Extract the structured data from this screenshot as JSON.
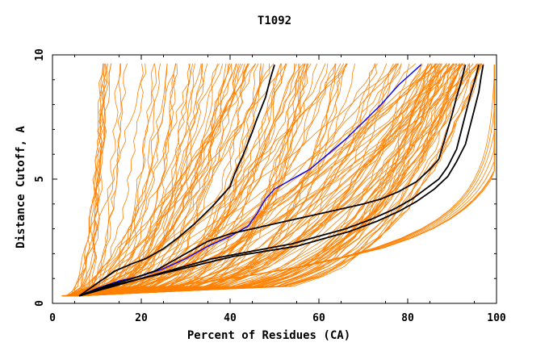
{
  "chart_data": {
    "type": "line",
    "title": "T1092",
    "xlabel": "Percent of Residues (CA)",
    "ylabel": "Distance Cutoff, A",
    "xlim": [
      0,
      100
    ],
    "ylim": [
      0,
      10
    ],
    "x_ticks": [
      0,
      20,
      40,
      60,
      80,
      100
    ],
    "y_ticks": [
      0,
      5,
      10
    ],
    "x_tick_labels": [
      "0",
      "20",
      "40",
      "60",
      "80",
      "100"
    ],
    "y_tick_labels": [
      "0",
      "5",
      "10"
    ],
    "grid": false,
    "colors": {
      "background_models": "#ff8000",
      "highlight_black": "#000000",
      "highlight_blue": "#0000ff"
    },
    "background_model_count": 160,
    "highlighted_series": [
      {
        "color": "#000000",
        "points": [
          [
            6,
            0.3
          ],
          [
            10,
            0.8
          ],
          [
            14,
            1.3
          ],
          [
            18,
            1.6
          ],
          [
            21,
            1.8
          ],
          [
            25,
            2.2
          ],
          [
            28,
            2.6
          ],
          [
            32,
            3.2
          ],
          [
            36,
            3.9
          ],
          [
            38,
            4.3
          ],
          [
            40,
            4.7
          ],
          [
            41,
            5.2
          ],
          [
            43,
            6.0
          ],
          [
            45,
            6.9
          ],
          [
            46,
            7.4
          ],
          [
            48,
            8.3
          ],
          [
            49,
            9.0
          ],
          [
            50,
            9.6
          ]
        ]
      },
      {
        "color": "#0000ff",
        "points": [
          [
            6,
            0.3
          ],
          [
            10,
            0.6
          ],
          [
            15,
            0.9
          ],
          [
            20,
            1.1
          ],
          [
            25,
            1.4
          ],
          [
            30,
            1.8
          ],
          [
            35,
            2.3
          ],
          [
            40,
            2.7
          ],
          [
            44,
            3.1
          ],
          [
            46,
            3.6
          ],
          [
            48,
            4.2
          ],
          [
            50,
            4.6
          ],
          [
            54,
            5.0
          ],
          [
            58,
            5.4
          ],
          [
            62,
            6.0
          ],
          [
            66,
            6.6
          ],
          [
            70,
            7.3
          ],
          [
            74,
            8.0
          ],
          [
            78,
            8.8
          ],
          [
            83,
            9.6
          ]
        ]
      },
      {
        "color": "#000000",
        "points": [
          [
            6,
            0.3
          ],
          [
            12,
            0.7
          ],
          [
            18,
            1.0
          ],
          [
            23,
            1.3
          ],
          [
            28,
            1.8
          ],
          [
            31,
            2.1
          ],
          [
            35,
            2.5
          ],
          [
            40,
            2.8
          ],
          [
            45,
            3.0
          ],
          [
            50,
            3.2
          ],
          [
            55,
            3.4
          ],
          [
            60,
            3.6
          ],
          [
            65,
            3.8
          ],
          [
            70,
            4.0
          ],
          [
            74,
            4.2
          ],
          [
            78,
            4.5
          ],
          [
            82,
            4.9
          ],
          [
            85,
            5.4
          ],
          [
            87,
            5.8
          ],
          [
            88,
            6.4
          ],
          [
            89,
            7.0
          ],
          [
            90,
            7.6
          ],
          [
            91,
            8.3
          ],
          [
            92,
            8.9
          ],
          [
            93,
            9.6
          ]
        ]
      },
      {
        "color": "#000000",
        "points": [
          [
            6,
            0.3
          ],
          [
            12,
            0.6
          ],
          [
            18,
            0.9
          ],
          [
            24,
            1.2
          ],
          [
            30,
            1.5
          ],
          [
            36,
            1.8
          ],
          [
            42,
            2.0
          ],
          [
            48,
            2.2
          ],
          [
            54,
            2.4
          ],
          [
            60,
            2.7
          ],
          [
            66,
            3.0
          ],
          [
            72,
            3.4
          ],
          [
            77,
            3.8
          ],
          [
            81,
            4.2
          ],
          [
            84,
            4.6
          ],
          [
            87,
            5.0
          ],
          [
            89,
            5.5
          ],
          [
            91,
            6.2
          ],
          [
            92,
            6.9
          ],
          [
            93,
            7.6
          ],
          [
            94,
            8.3
          ],
          [
            95,
            8.9
          ],
          [
            96,
            9.6
          ]
        ]
      },
      {
        "color": "#000000",
        "points": [
          [
            6,
            0.3
          ],
          [
            13,
            0.7
          ],
          [
            20,
            1.0
          ],
          [
            27,
            1.3
          ],
          [
            34,
            1.6
          ],
          [
            41,
            1.9
          ],
          [
            48,
            2.1
          ],
          [
            55,
            2.3
          ],
          [
            61,
            2.6
          ],
          [
            67,
            2.9
          ],
          [
            73,
            3.3
          ],
          [
            78,
            3.7
          ],
          [
            82,
            4.1
          ],
          [
            86,
            4.6
          ],
          [
            89,
            5.1
          ],
          [
            91,
            5.7
          ],
          [
            93,
            6.4
          ],
          [
            94,
            7.1
          ],
          [
            95,
            7.8
          ],
          [
            96,
            8.5
          ],
          [
            96.5,
            9.1
          ],
          [
            97,
            9.6
          ]
        ]
      }
    ]
  }
}
